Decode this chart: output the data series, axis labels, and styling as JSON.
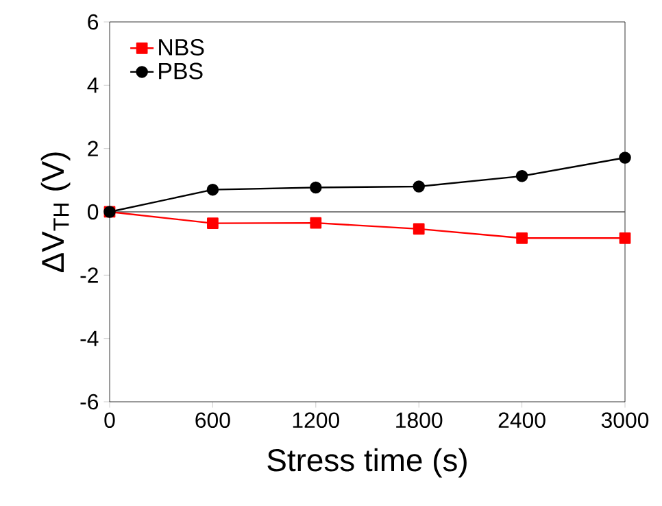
{
  "chart_data": {
    "type": "line",
    "xlabel": "Stress time (s)",
    "ylabel": "ΔV$_{TH}$ (V)",
    "x": [
      0,
      600,
      1200,
      1800,
      2400,
      3000
    ],
    "series": [
      {
        "name": "NBS",
        "color": "#ff0000",
        "marker": "square",
        "values": [
          0,
          -0.36,
          -0.35,
          -0.54,
          -0.83,
          -0.83
        ]
      },
      {
        "name": "PBS",
        "color": "#000000",
        "marker": "circle",
        "values": [
          0,
          0.7,
          0.77,
          0.8,
          1.13,
          1.71
        ]
      }
    ],
    "xlim": [
      0,
      3000
    ],
    "ylim": [
      -6,
      6
    ],
    "xticks": [
      0,
      600,
      1200,
      1800,
      2400,
      3000
    ],
    "yticks": [
      -6,
      -4,
      -2,
      0,
      2,
      4,
      6
    ],
    "ref_lines": [
      {
        "axis": "y",
        "value": 0,
        "color": "#555555"
      }
    ],
    "legend": "top left",
    "grid": false,
    "line_style": "solid"
  }
}
